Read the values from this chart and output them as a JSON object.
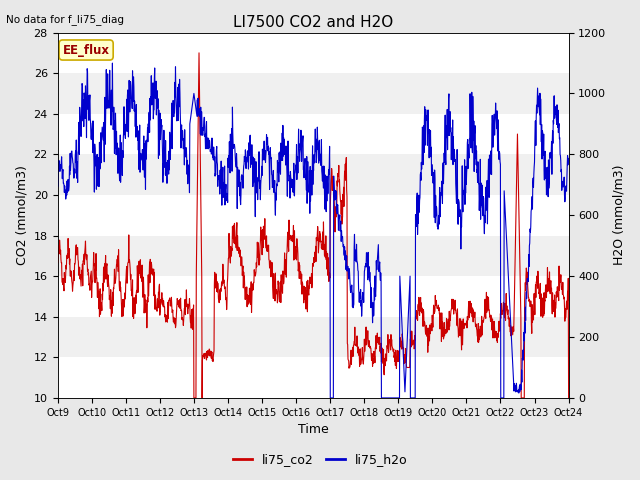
{
  "title": "LI7500 CO2 and H2O",
  "top_left_text": "No data for f_li75_diag",
  "xlabel": "Time",
  "ylabel_left": "CO2 (mmol/m3)",
  "ylabel_right": "H2O (mmol/m3)",
  "ylim_left": [
    10,
    28
  ],
  "ylim_right": [
    0,
    1200
  ],
  "yticks_left": [
    10,
    12,
    14,
    16,
    18,
    20,
    22,
    24,
    26,
    28
  ],
  "yticks_right": [
    0,
    200,
    400,
    600,
    800,
    1000,
    1200
  ],
  "xtick_labels": [
    "Oct 9",
    "Oct 10",
    "Oct 11",
    "Oct 12",
    "Oct 13",
    "Oct 14",
    "Oct 15",
    "Oct 16",
    "Oct 17",
    "Oct 18",
    "Oct 19",
    "Oct 20",
    "Oct 21",
    "Oct 22",
    "Oct 23",
    "Oct 24"
  ],
  "color_co2": "#cc0000",
  "color_h2o": "#0000cc",
  "legend_label_co2": "li75_co2",
  "legend_label_h2o": "li75_h2o",
  "ee_flux_label": "EE_flux",
  "ee_flux_bg": "#ffffcc",
  "ee_flux_border": "#ccaa00",
  "background_color": "#e8e8e8",
  "plot_bg_stripe_light": "#f0f0f0",
  "plot_bg_stripe_dark": "#dcdcdc",
  "grid_color": "#ffffff",
  "title_fontsize": 11,
  "axis_fontsize": 9,
  "tick_fontsize": 8,
  "legend_fontsize": 9,
  "figsize": [
    6.4,
    4.8
  ],
  "dpi": 100
}
